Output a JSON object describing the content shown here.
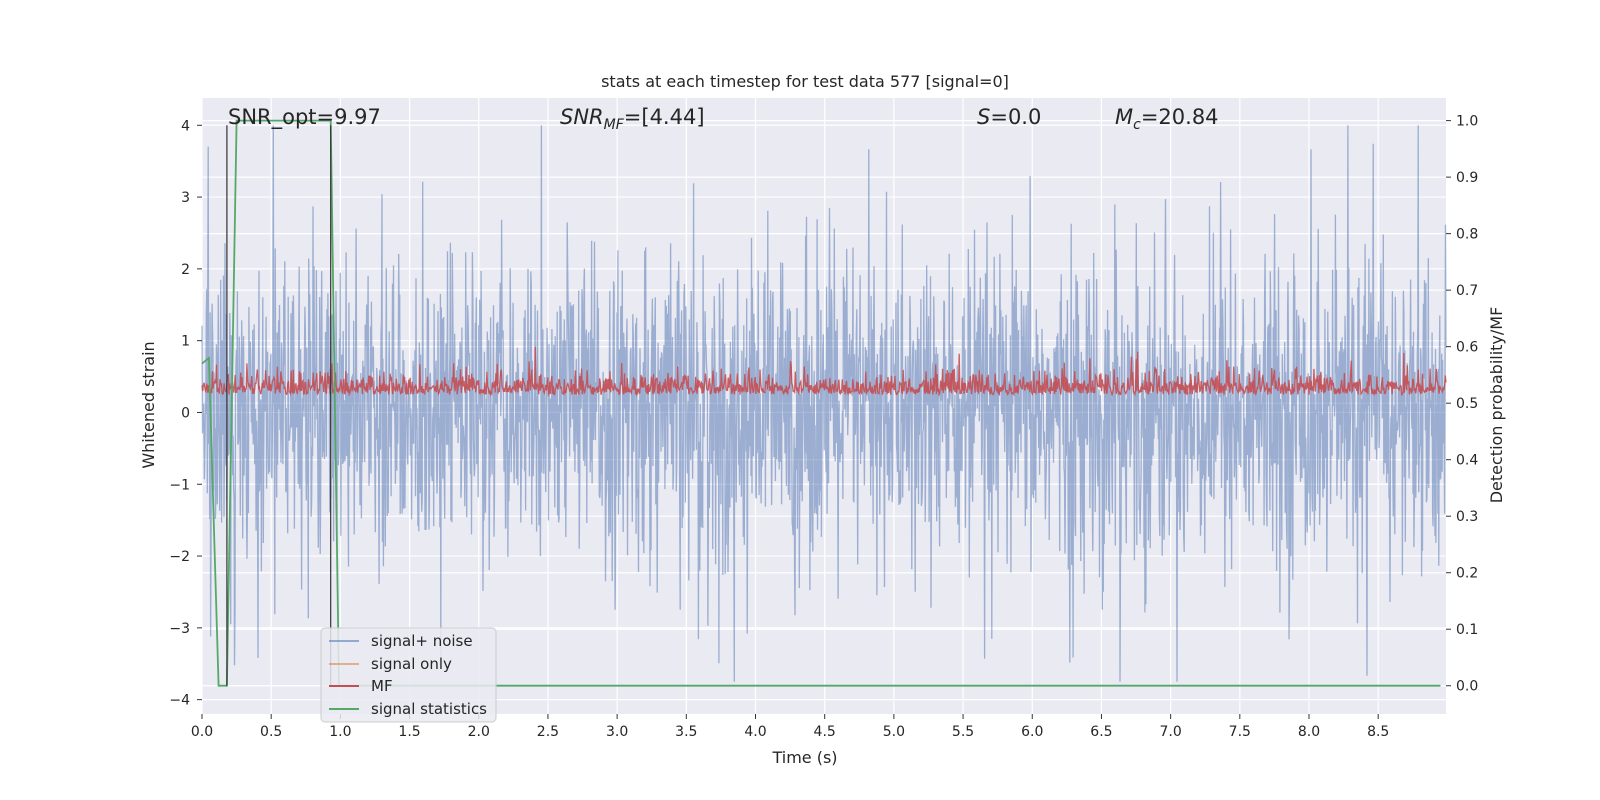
{
  "chart_data": {
    "type": "line",
    "title": "stats at each timestep for test data 577 [signal=0]",
    "xlabel": "Time (s)",
    "ylabel_left": "Whitened strain",
    "ylabel_right": "Detection probability/MF",
    "xlim": [
      0,
      8.99
    ],
    "ylim_left": [
      -4.2,
      4.38
    ],
    "ylim_right": [
      -0.05,
      1.04
    ],
    "x_ticks": [
      "0.0",
      "0.5",
      "1.0",
      "1.5",
      "2.0",
      "2.5",
      "3.0",
      "3.5",
      "4.0",
      "4.5",
      "5.0",
      "5.5",
      "6.0",
      "6.5",
      "7.0",
      "7.5",
      "8.0",
      "8.5"
    ],
    "y_left_ticks": [
      "4",
      "3",
      "2",
      "1",
      "0",
      "−1",
      "−2",
      "−3",
      "−4"
    ],
    "y_right_ticks": [
      "1.0",
      "0.9",
      "0.8",
      "0.7",
      "0.6",
      "0.5",
      "0.4",
      "0.3",
      "0.2",
      "0.1",
      "0.0"
    ],
    "grid": true,
    "legend_position": "lower-left",
    "colors": {
      "background": "#eaeaf2",
      "grid": "#ffffff",
      "signal_noise": "#4c72b0",
      "signal_only": "#dd8452",
      "mf": "#c44e52",
      "signal_statistics": "#55a868"
    },
    "annotations": [
      {
        "label": "SNR_opt=9.97",
        "italic": false
      },
      {
        "label": "SNR",
        "sub": "MF",
        "suffix": "=[4.44]",
        "italic": true
      },
      {
        "label": "S",
        "suffix": "=0.0",
        "italic": true
      },
      {
        "label": "M",
        "sub": "c",
        "suffix": "=20.84",
        "italic": true
      }
    ],
    "series": [
      {
        "name": "signal+ noise",
        "axis": "left",
        "description": "dense whitened-strain noise trace",
        "summary": {
          "typical_range": [
            -1.5,
            1.5
          ],
          "max": 4.0,
          "min": -3.7
        }
      },
      {
        "name": "signal only",
        "axis": "left",
        "x": [],
        "y": []
      },
      {
        "name": "MF",
        "axis": "right",
        "summary": {
          "typical_range": [
            0.5,
            0.56
          ],
          "max": 0.6
        }
      },
      {
        "name": "signal statistics",
        "axis": "right",
        "x": [
          0.0,
          0.05,
          0.12,
          0.18,
          0.25,
          0.93,
          0.99,
          1.06,
          8.95
        ],
        "y": [
          0.57,
          0.58,
          0.0,
          0.0,
          1.0,
          1.0,
          0.0,
          0.0,
          0.0
        ]
      }
    ],
    "vertical_lines": [
      0.18,
      0.93
    ]
  }
}
